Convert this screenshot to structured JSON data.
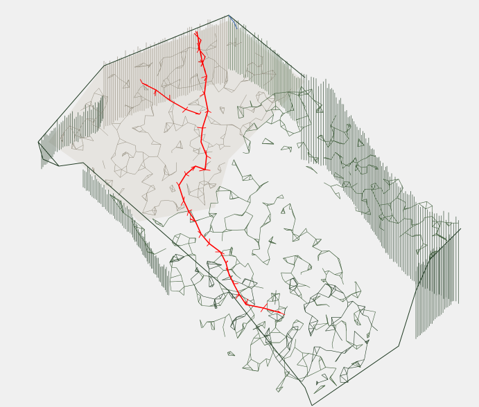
{
  "scene": {
    "background": "#f0f0f0",
    "mesh_dark": "#1f3a22",
    "mesh_mid": "#3f5e3a",
    "mesh_light": "#8f8878",
    "mesh_pale": "#d9d4cc",
    "path_color": "#ff0000",
    "accent_blue": "#4a6fb0"
  }
}
